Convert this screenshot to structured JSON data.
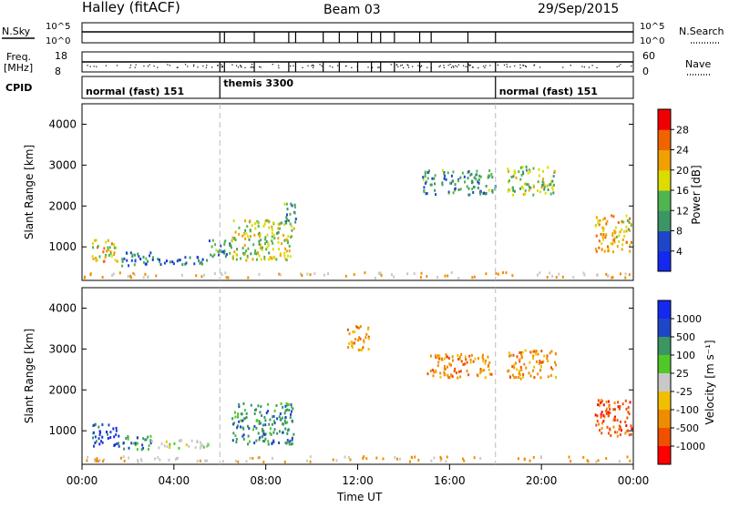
{
  "header": {
    "station": "Halley (fitACF)",
    "beam": "Beam 03",
    "date": "29/Sep/2015"
  },
  "labels": {
    "nsky": "N.Sky",
    "nsearch": "N.Search",
    "freq_top": "Freq.",
    "freq_unit": "[MHz]",
    "nave": "Nave",
    "cpid": "CPID",
    "time_ut": "Time UT",
    "slant_range": "Slant Range [km]",
    "power_label": "Power [dB]",
    "velocity_label": "Velocity [m s⁻¹]"
  },
  "summary_panels": {
    "noise_left_ticks": [
      "10^5",
      "10^0"
    ],
    "noise_right_ticks": [
      "10^5",
      "10^0"
    ],
    "freq_left_ticks": [
      "18",
      "8"
    ],
    "freq_right_ticks": [
      "60",
      "0"
    ]
  },
  "cpid_segments": [
    {
      "label": "normal (fast) 151",
      "start": "00:00",
      "end": "06:00"
    },
    {
      "label": "themis 3300",
      "start": "06:00",
      "end": "18:00"
    },
    {
      "label": "normal (fast) 151",
      "start": "18:00",
      "end": "24:00"
    }
  ],
  "colors": {
    "power_scale": [
      "#1428f0",
      "#1e46c8",
      "#3c9664",
      "#50b450",
      "#dcdc00",
      "#f0a000",
      "#f06400",
      "#f00000"
    ],
    "velocity_scale": [
      "#ff0000",
      "#f05000",
      "#f08c00",
      "#f0c000",
      "#c8c8c8",
      "#50c828",
      "#3c9664",
      "#1e46c8",
      "#1428f0"
    ],
    "ground_scatter": "#808080"
  },
  "chart_data": [
    {
      "type": "heatmap",
      "name_ref": "power",
      "x_label": "Time UT",
      "y_label": "Slant Range [km]",
      "xlim": [
        0,
        24
      ],
      "ylim": [
        180,
        4500
      ],
      "x_ticks": [
        "00:00",
        "04:00",
        "08:00",
        "12:00",
        "16:00",
        "20:00",
        "00:00"
      ],
      "y_ticks": [
        1000,
        2000,
        3000,
        4000
      ],
      "colorbar": {
        "label": "Power [dB]",
        "ticks": [
          4,
          8,
          12,
          16,
          20,
          24,
          28
        ],
        "range": [
          0,
          30
        ]
      },
      "scatter_regions": [
        {
          "t0": 0.4,
          "t1": 1.6,
          "r0": 650,
          "r1": 1200,
          "level": 18
        },
        {
          "t0": 1.6,
          "t1": 3.0,
          "r0": 550,
          "r1": 900,
          "level": 8
        },
        {
          "t0": 3.0,
          "t1": 5.5,
          "r0": 600,
          "r1": 800,
          "level": 6
        },
        {
          "t0": 5.5,
          "t1": 6.5,
          "r0": 700,
          "r1": 1200,
          "level": 10
        },
        {
          "t0": 6.5,
          "t1": 9.2,
          "r0": 700,
          "r1": 1700,
          "level": 16
        },
        {
          "t0": 8.6,
          "t1": 9.3,
          "r0": 1600,
          "r1": 2100,
          "level": 10
        },
        {
          "t0": 14.8,
          "t1": 18.0,
          "r0": 2300,
          "r1": 2900,
          "level": 10
        },
        {
          "t0": 18.5,
          "t1": 20.6,
          "r0": 2300,
          "r1": 3000,
          "level": 14
        },
        {
          "t0": 22.3,
          "t1": 23.9,
          "r0": 900,
          "r1": 1800,
          "level": 20
        }
      ]
    },
    {
      "type": "heatmap",
      "name_ref": "velocity",
      "x_label": "Time UT",
      "y_label": "Slant Range [km]",
      "xlim": [
        0,
        24
      ],
      "ylim": [
        180,
        4500
      ],
      "x_ticks": [
        "00:00",
        "04:00",
        "08:00",
        "12:00",
        "16:00",
        "20:00",
        "00:00"
      ],
      "y_ticks": [
        1000,
        2000,
        3000,
        4000
      ],
      "colorbar": {
        "label": "Velocity [m s⁻¹]",
        "ticks": [
          "1000",
          "500",
          "100",
          "25",
          "-25",
          "-100",
          "-500",
          "-1000"
        ]
      },
      "scatter_regions": [
        {
          "t0": 0.4,
          "t1": 1.6,
          "r0": 650,
          "r1": 1200,
          "vel": 500
        },
        {
          "t0": 1.6,
          "t1": 3.0,
          "r0": 550,
          "r1": 900,
          "vel": 100
        },
        {
          "t0": 3.0,
          "t1": 5.5,
          "r0": 600,
          "r1": 800,
          "vel": 0
        },
        {
          "t0": 6.5,
          "t1": 9.2,
          "r0": 700,
          "r1": 1700,
          "vel": 100
        },
        {
          "t0": 11.5,
          "t1": 12.5,
          "r0": 3000,
          "r1": 3600,
          "vel": -100
        },
        {
          "t0": 15.0,
          "t1": 17.8,
          "r0": 2300,
          "r1": 2900,
          "vel": -100
        },
        {
          "t0": 18.5,
          "t1": 20.6,
          "r0": 2300,
          "r1": 3000,
          "vel": -100
        },
        {
          "t0": 22.3,
          "t1": 23.9,
          "r0": 900,
          "r1": 1800,
          "vel": -500
        }
      ]
    }
  ]
}
